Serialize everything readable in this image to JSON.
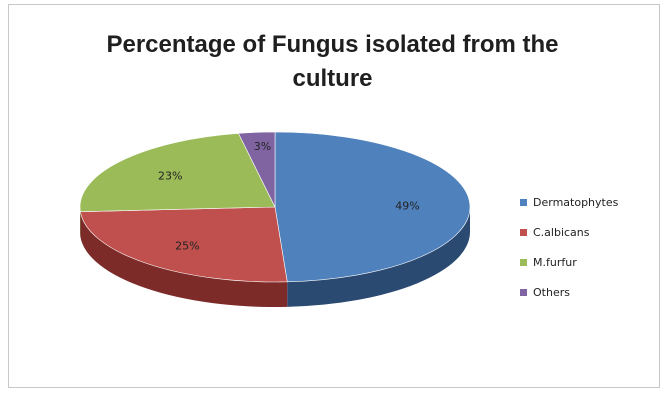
{
  "chart_data": {
    "type": "pie",
    "title_lines": [
      "Percentage of Fungus isolated from the",
      "culture"
    ],
    "slices": [
      {
        "name": "Dermatophytes",
        "value": 49,
        "label": "49%",
        "color": "#4f81bd",
        "side_color": "#2b4a72"
      },
      {
        "name": "C.albicans",
        "value": 25,
        "label": "25%",
        "color": "#c0504d",
        "side_color": "#7c2b29"
      },
      {
        "name": "M.furfur",
        "value": 23,
        "label": "23%",
        "color": "#9bbb59",
        "side_color": "#5f7631"
      },
      {
        "name": "Others",
        "value": 3,
        "label": "3%",
        "color": "#8064a2",
        "side_color": "#4e3a68"
      }
    ],
    "legend_position": "right",
    "style": "3d"
  }
}
